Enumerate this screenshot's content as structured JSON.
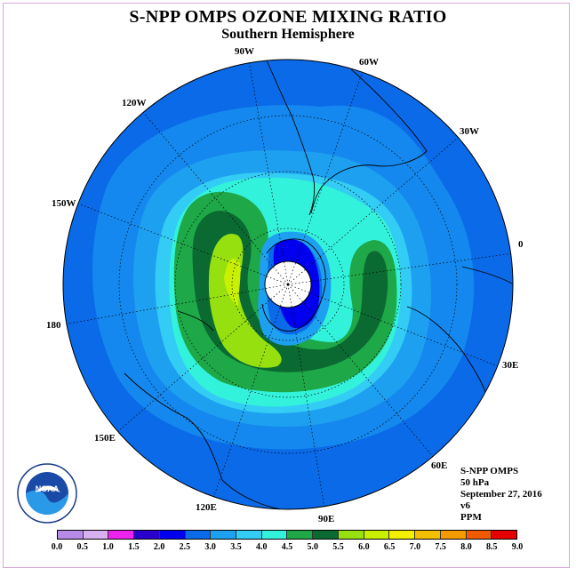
{
  "title": "S-NPP OMPS OZONE MIXING RATIO",
  "subtitle": "Southern Hemisphere",
  "longitude_labels": [
    "90W",
    "60W",
    "30W",
    "0",
    "30E",
    "60E",
    "90E",
    "120E",
    "150E",
    "180",
    "150W",
    "120W"
  ],
  "info": {
    "instrument": "S-NPP OMPS",
    "level": "50 hPa",
    "date": "September 27, 2016",
    "version": "v6",
    "units": "PPM"
  },
  "logo_text": "NOAA",
  "color_scale": {
    "ticks": [
      "0.0",
      "0.5",
      "1.0",
      "1.5",
      "2.0",
      "2.5",
      "3.0",
      "3.5",
      "4.0",
      "4.5",
      "5.0",
      "5.5",
      "6.0",
      "6.5",
      "7.0",
      "7.5",
      "8.0",
      "8.5",
      "9.0"
    ],
    "colors": [
      "#b88ae8",
      "#d8b0f0",
      "#ee22ee",
      "#2a00cc",
      "#0000ee",
      "#0a6ae8",
      "#1ea0f0",
      "#33ccf4",
      "#33f2dc",
      "#1ea848",
      "#0a6a32",
      "#96e010",
      "#c8f000",
      "#f2f000",
      "#f2c000",
      "#f29a00",
      "#f25a00",
      "#e80000",
      "#8a5a3a"
    ]
  }
}
